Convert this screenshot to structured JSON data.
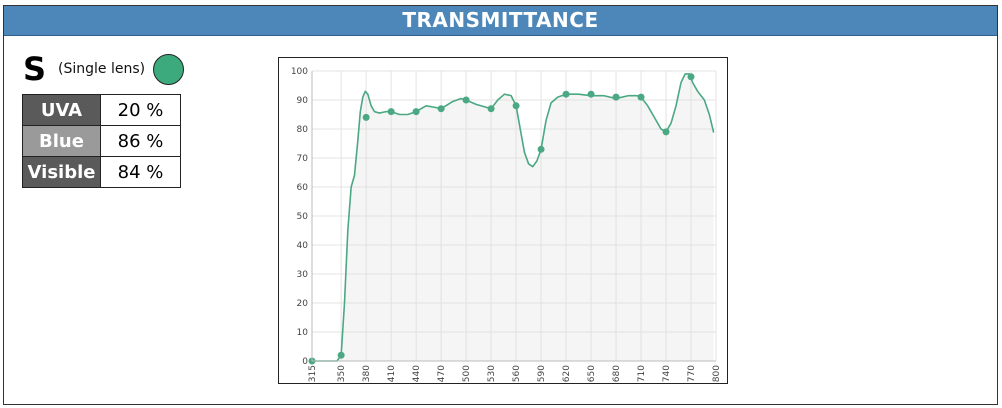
{
  "header": {
    "title": "TRANSMITTANCE"
  },
  "lens": {
    "code": "S",
    "description": "(Single lens)",
    "color": "#3daa7d"
  },
  "stats": [
    {
      "label": "UVA",
      "value": "20 %",
      "label_bg": "#5a5a5a"
    },
    {
      "label": "Blue",
      "value": "86 %",
      "label_bg": "#9a9a9a"
    },
    {
      "label": "Visible",
      "value": "84 %",
      "label_bg": "#5a5a5a"
    }
  ],
  "chart_data": {
    "type": "line",
    "series_color": "#4aa882",
    "xlim": [
      315,
      800
    ],
    "ylim": [
      0,
      100
    ],
    "x_ticks": [
      "315",
      "350",
      "380",
      "410",
      "440",
      "470",
      "500",
      "530",
      "560",
      "590",
      "620",
      "650",
      "680",
      "710",
      "740",
      "770",
      "800"
    ],
    "y_ticks": [
      "0",
      "10",
      "20",
      "30",
      "40",
      "50",
      "60",
      "70",
      "80",
      "90",
      "100"
    ],
    "grid": true,
    "markers": [
      [
        315,
        0
      ],
      [
        350,
        2
      ],
      [
        380,
        84
      ],
      [
        410,
        86
      ],
      [
        440,
        86
      ],
      [
        470,
        87
      ],
      [
        500,
        90
      ],
      [
        530,
        87
      ],
      [
        560,
        88
      ],
      [
        590,
        73
      ],
      [
        620,
        92
      ],
      [
        650,
        92
      ],
      [
        680,
        91
      ],
      [
        710,
        91
      ],
      [
        740,
        79
      ],
      [
        770,
        98
      ]
    ],
    "curve": [
      [
        315,
        0
      ],
      [
        345,
        0
      ],
      [
        350,
        2
      ],
      [
        354,
        20
      ],
      [
        358,
        45
      ],
      [
        362,
        60
      ],
      [
        366,
        64
      ],
      [
        370,
        76
      ],
      [
        373,
        86
      ],
      [
        376,
        91
      ],
      [
        379,
        93
      ],
      [
        382,
        92
      ],
      [
        386,
        88
      ],
      [
        390,
        86
      ],
      [
        396,
        85.5
      ],
      [
        404,
        86
      ],
      [
        410,
        86
      ],
      [
        420,
        85
      ],
      [
        430,
        85
      ],
      [
        440,
        86
      ],
      [
        452,
        88
      ],
      [
        462,
        87.5
      ],
      [
        470,
        87
      ],
      [
        484,
        89.5
      ],
      [
        494,
        90.5
      ],
      [
        500,
        90
      ],
      [
        512,
        88.5
      ],
      [
        524,
        87.5
      ],
      [
        530,
        87
      ],
      [
        538,
        90
      ],
      [
        546,
        92
      ],
      [
        554,
        91.5
      ],
      [
        560,
        88
      ],
      [
        565,
        80
      ],
      [
        570,
        72
      ],
      [
        575,
        68
      ],
      [
        580,
        67
      ],
      [
        585,
        69
      ],
      [
        590,
        73
      ],
      [
        596,
        83
      ],
      [
        602,
        89
      ],
      [
        610,
        91
      ],
      [
        620,
        92
      ],
      [
        635,
        92
      ],
      [
        650,
        91.5
      ],
      [
        665,
        91.5
      ],
      [
        680,
        90.5
      ],
      [
        695,
        91.5
      ],
      [
        705,
        91.5
      ],
      [
        710,
        91
      ],
      [
        718,
        88
      ],
      [
        726,
        84
      ],
      [
        734,
        80
      ],
      [
        740,
        79
      ],
      [
        746,
        82
      ],
      [
        752,
        88
      ],
      [
        758,
        96
      ],
      [
        763,
        99
      ],
      [
        768,
        99
      ],
      [
        772,
        96
      ],
      [
        778,
        93
      ],
      [
        786,
        90
      ],
      [
        792,
        85
      ],
      [
        797,
        79
      ]
    ]
  }
}
